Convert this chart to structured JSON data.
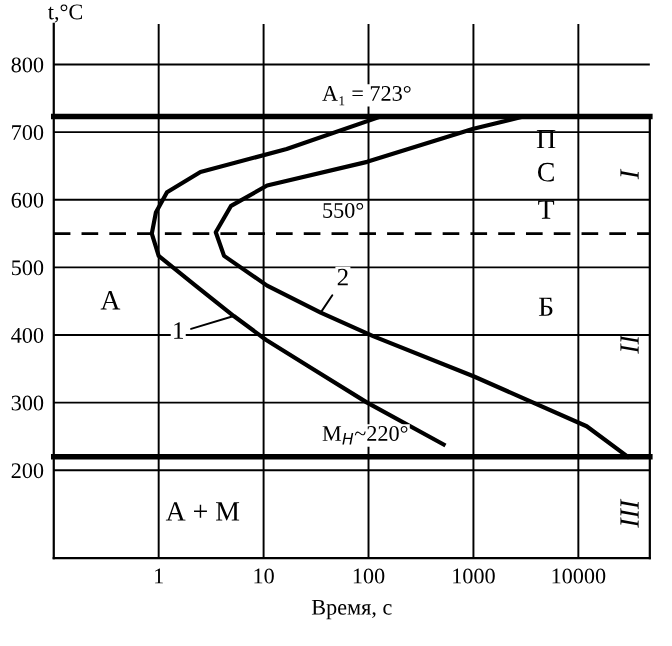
{
  "chart_data": {
    "type": "line",
    "xlabel": "Время, с",
    "ylabel": "t,°C",
    "log": "x",
    "xlim": [
      0.1,
      48000
    ],
    "ylim": [
      70,
      860
    ],
    "xticks": [
      1,
      10,
      100,
      1000,
      10000
    ],
    "yticks": [
      200,
      300,
      400,
      500,
      600,
      700,
      800
    ],
    "grid": true,
    "marker": "none",
    "line_style": "solid",
    "series": [
      {
        "name": "1",
        "color": "#000000",
        "x": [
          130,
          16.6,
          2.5,
          1.2,
          0.94,
          0.86,
          1.0,
          2.2,
          5.2,
          10.5,
          30,
          97,
          520
        ],
        "values": [
          723,
          675,
          641,
          611,
          581,
          550,
          517,
          474,
          428,
          393,
          349,
          300,
          238
        ]
      },
      {
        "name": "2",
        "color": "#000000",
        "x": [
          3000,
          1000,
          97,
          10.8,
          4.9,
          3.5,
          4.2,
          10.8,
          35,
          112,
          1000,
          12000,
          29500
        ],
        "values": [
          723,
          705,
          656,
          621,
          591,
          552,
          517,
          473,
          433,
          398,
          339,
          265,
          220
        ]
      }
    ],
    "ref_lines": [
      {
        "axis": "y",
        "value": 723,
        "label": "A₁ = 723°",
        "line_style": "solid",
        "color": "#000000"
      },
      {
        "axis": "y",
        "value": 550,
        "label": "550°",
        "line_style": "dashed",
        "color": "#000000"
      },
      {
        "axis": "y",
        "value": 220,
        "label": "M$_{Н}$~220°",
        "line_style": "solid",
        "color": "#000000"
      }
    ],
    "annotations": [
      "П",
      "С",
      "Т",
      "А",
      "Б",
      "А + М",
      "I",
      "II",
      "III"
    ]
  }
}
